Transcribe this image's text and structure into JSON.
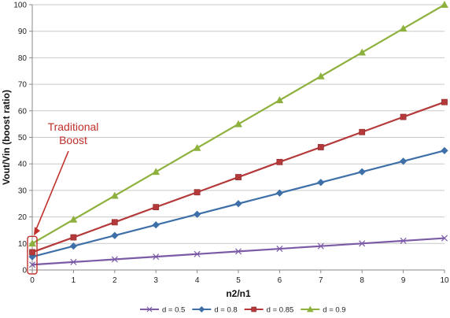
{
  "chart_data": {
    "type": "line",
    "title": "",
    "xlabel": "n2/n1",
    "ylabel": "Vout/Vin (boost ratio)",
    "x": [
      0,
      1,
      2,
      3,
      4,
      5,
      6,
      7,
      8,
      9,
      10
    ],
    "xlim": [
      0,
      10
    ],
    "ylim": [
      0,
      100
    ],
    "xticks": [
      "0",
      "1",
      "2",
      "3",
      "4",
      "5",
      "6",
      "7",
      "8",
      "9",
      "10"
    ],
    "yticks": [
      "0",
      "10",
      "20",
      "30",
      "40",
      "50",
      "60",
      "70",
      "80",
      "90",
      "100"
    ],
    "grid": "horizontal",
    "legend_position": "bottom",
    "series": [
      {
        "name": "d = 0.5",
        "color": "#7b5aa6",
        "marker": "x",
        "values": [
          2,
          3,
          4,
          5,
          6,
          7,
          8,
          9,
          10,
          11,
          12
        ]
      },
      {
        "name": "d = 0.8",
        "color": "#3e6fa8",
        "marker": "diamond",
        "values": [
          5,
          9,
          13,
          17,
          21,
          25,
          29,
          33,
          37,
          41,
          45
        ]
      },
      {
        "name": "d = 0.85",
        "color": "#b4393a",
        "marker": "square",
        "values": [
          6.7,
          12.3,
          18,
          23.7,
          29.3,
          35,
          40.7,
          46.3,
          52,
          57.7,
          63.3
        ]
      },
      {
        "name": "d = 0.9",
        "color": "#8db13c",
        "marker": "triangle",
        "values": [
          10,
          19,
          28,
          37,
          46,
          55,
          64,
          73,
          82,
          91,
          100
        ]
      }
    ],
    "annotation": {
      "text_lines": [
        "Traditional",
        "Boost"
      ],
      "color": "#c0302b",
      "points_to": {
        "x": 0,
        "y": 10
      }
    }
  }
}
